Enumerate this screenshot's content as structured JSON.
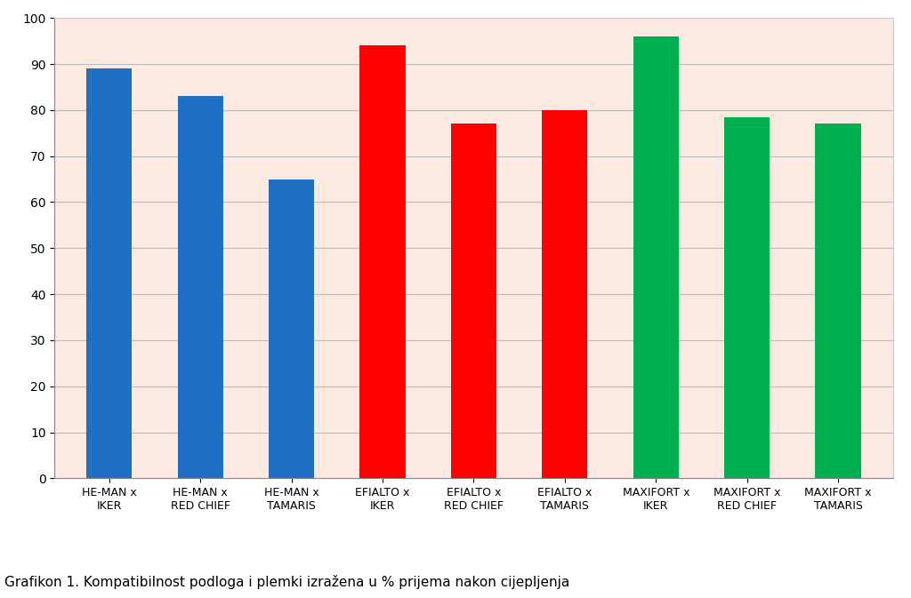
{
  "chart_data": {
    "type": "bar",
    "title": "Grafikon 1. Kompatibilnost podloga i plemki izražena u % prijema nakon cijepljenja",
    "categories": [
      "HE-MAN x IKER",
      "HE-MAN x RED CHIEF",
      "HE-MAN x TAMARIS",
      "EFIALTO x IKER",
      "EFIALTO x RED CHIEF",
      "EFIALTO x TAMARIS",
      "MAXIFORT x IKER",
      "MAXIFORT x RED CHIEF",
      "MAXIFORT x TAMARIS"
    ],
    "values": [
      89,
      83,
      65,
      94,
      77,
      80,
      96,
      78.5,
      77
    ],
    "colors": [
      "#1f6fc5",
      "#1f6fc5",
      "#1f6fc5",
      "#ff0000",
      "#ff0000",
      "#ff0000",
      "#00b050",
      "#00b050",
      "#00b050"
    ],
    "ylim": [
      0,
      100
    ],
    "yticks": [
      0,
      10,
      20,
      30,
      40,
      50,
      60,
      70,
      80,
      90,
      100
    ],
    "grid": true
  }
}
